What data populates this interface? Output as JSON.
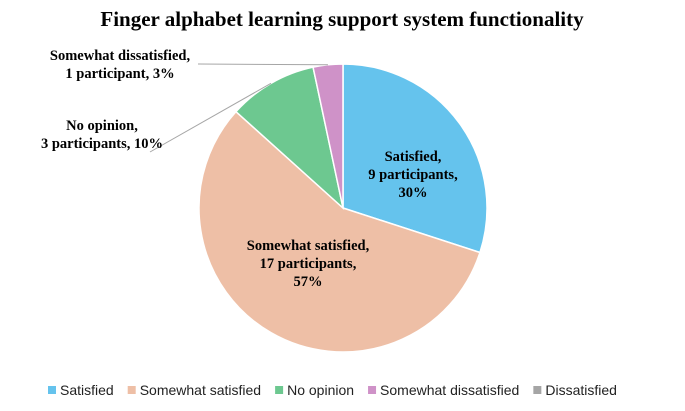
{
  "chart_data": {
    "type": "pie",
    "title": "Finger alphabet learning support system functionality",
    "slices": [
      {
        "name": "Satisfied",
        "value": 9,
        "percent": 30,
        "color": "#65C3ED",
        "label_lines": [
          "Satisfied,",
          "9 participants,",
          "30%"
        ]
      },
      {
        "name": "Somewhat satisfied",
        "value": 17,
        "percent": 57,
        "color": "#EEBFA6",
        "label_lines": [
          "Somewhat satisfied,",
          "17 participants,",
          "57%"
        ]
      },
      {
        "name": "No opinion",
        "value": 3,
        "percent": 10,
        "color": "#6DC890",
        "label_lines": [
          "No opinion,",
          "3 participants, 10%"
        ]
      },
      {
        "name": "Somewhat dissatisfied",
        "value": 1,
        "percent": 3,
        "color": "#CF92C8",
        "label_lines": [
          "Somewhat dissatisfied,",
          "1 participant, 3%"
        ]
      },
      {
        "name": "Dissatisfied",
        "value": 0,
        "percent": 0,
        "color": "#A5A5A5",
        "label_lines": []
      }
    ],
    "legend_position": "bottom"
  }
}
